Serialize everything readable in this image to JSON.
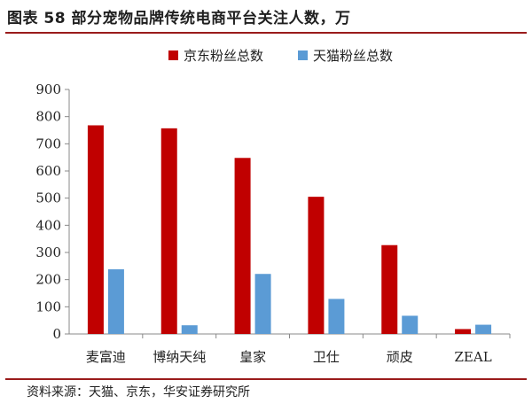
{
  "header": {
    "title": "图表 58 部分宠物品牌传统电商平台关注人数，万"
  },
  "footer": {
    "source": "资料来源：天猫、京东，华安证券研究所"
  },
  "chart_data": {
    "type": "bar",
    "title": "",
    "xlabel": "",
    "ylabel": "",
    "ylim": [
      0,
      900
    ],
    "yticks": [
      0,
      100,
      200,
      300,
      400,
      500,
      600,
      700,
      800,
      900
    ],
    "grid": false,
    "legend_position": "top-center",
    "categories": [
      "麦富迪",
      "博纳天纯",
      "皇家",
      "卫仕",
      "顽皮",
      "ZEAL"
    ],
    "series": [
      {
        "name": "京东粉丝总数",
        "color": "#c00000",
        "values": [
          768,
          757,
          648,
          505,
          327,
          18
        ]
      },
      {
        "name": "天猫粉丝总数",
        "color": "#5b9bd5",
        "values": [
          238,
          32,
          221,
          129,
          67,
          34
        ]
      }
    ]
  }
}
